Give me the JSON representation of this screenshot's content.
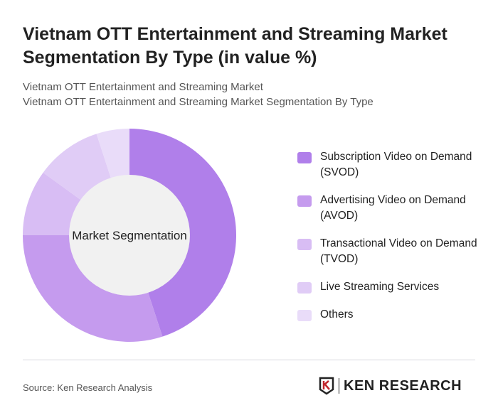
{
  "title": "Vietnam OTT Entertainment and Streaming Market Segmentation By Type (in value %)",
  "subtitle1": "Vietnam OTT Entertainment and Streaming Market",
  "subtitle2": "Vietnam OTT Entertainment and Streaming Market Segmentation By Type",
  "chart_data": {
    "type": "pie",
    "donut": true,
    "center_label": "Market Segmentation",
    "categories": [
      "Subscription Video on Demand (SVOD)",
      "Advertising Video on Demand (AVOD)",
      "Transactional Video on Demand (TVOD)",
      "Live Streaming Services",
      "Others"
    ],
    "values": [
      45,
      30,
      10,
      10,
      5
    ],
    "colors": [
      "#b07fea",
      "#c59bee",
      "#d8bdf4",
      "#e0ccf6",
      "#e9dcf9"
    ],
    "legend": "right"
  },
  "source": "Source: Ken Research Analysis",
  "logo_text": "KEN RESEARCH"
}
